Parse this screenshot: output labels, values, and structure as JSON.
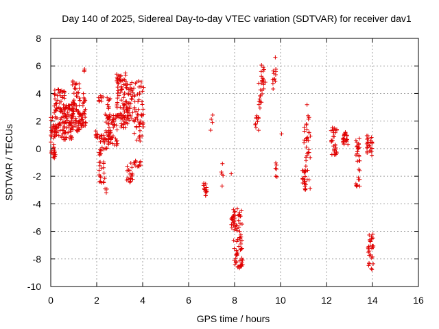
{
  "chart_data": {
    "type": "scatter",
    "title": "Day 140 of 2025, Sidereal Day-to-day VTEC variation (SDTVAR) for receiver dav1",
    "xlabel": "GPS time / hours",
    "ylabel": "SDTVAR / TECUs",
    "xlim": [
      0,
      16
    ],
    "ylim": [
      -10,
      8
    ],
    "xticks": [
      0,
      2,
      4,
      6,
      8,
      10,
      12,
      14,
      16
    ],
    "yticks": [
      -10,
      -8,
      -6,
      -4,
      -2,
      0,
      2,
      4,
      6,
      8
    ],
    "grid": true,
    "marker": "+",
    "marker_color": "#e00000",
    "series": [
      {
        "name": "SDTVAR",
        "clusters": [
          {
            "x0": 0.0,
            "x1": 0.2,
            "y0": -0.7,
            "y1": 2.3,
            "n": 40
          },
          {
            "x0": 0.15,
            "x1": 0.6,
            "y0": 0.8,
            "y1": 4.3,
            "n": 80
          },
          {
            "x0": 0.55,
            "x1": 1.0,
            "y0": 0.5,
            "y1": 3.2,
            "n": 70
          },
          {
            "x0": 0.9,
            "x1": 1.25,
            "y0": 1.2,
            "y1": 5.0,
            "n": 60
          },
          {
            "x0": 1.2,
            "x1": 1.55,
            "y0": 1.5,
            "y1": 4.2,
            "n": 40
          },
          {
            "x0": 1.45,
            "x1": 1.5,
            "y0": 5.5,
            "y1": 5.8,
            "n": 3
          },
          {
            "x0": 1.95,
            "x1": 2.05,
            "y0": 0.7,
            "y1": 1.3,
            "n": 8
          },
          {
            "x0": 2.05,
            "x1": 2.3,
            "y0": 3.4,
            "y1": 3.9,
            "n": 10
          },
          {
            "x0": 2.1,
            "x1": 2.35,
            "y0": -2.5,
            "y1": 1.0,
            "n": 40
          },
          {
            "x0": 2.3,
            "x1": 2.45,
            "y0": -3.2,
            "y1": -2.8,
            "n": 3
          },
          {
            "x0": 2.35,
            "x1": 2.6,
            "y0": 0.0,
            "y1": 3.8,
            "n": 35
          },
          {
            "x0": 2.5,
            "x1": 2.9,
            "y0": 0.2,
            "y1": 2.5,
            "n": 45
          },
          {
            "x0": 2.85,
            "x1": 3.3,
            "y0": 1.5,
            "y1": 5.5,
            "n": 70
          },
          {
            "x0": 3.2,
            "x1": 3.6,
            "y0": 1.8,
            "y1": 4.8,
            "n": 50
          },
          {
            "x0": 3.3,
            "x1": 3.6,
            "y0": -2.5,
            "y1": -1.0,
            "n": 20
          },
          {
            "x0": 3.5,
            "x1": 3.95,
            "y0": -1.3,
            "y1": -0.8,
            "n": 12
          },
          {
            "x0": 3.6,
            "x1": 4.05,
            "y0": 0.5,
            "y1": 5.0,
            "n": 55
          },
          {
            "x0": 6.65,
            "x1": 6.8,
            "y0": -3.5,
            "y1": -2.5,
            "n": 15
          },
          {
            "x0": 6.95,
            "x1": 7.05,
            "y0": 1.0,
            "y1": 2.5,
            "n": 4
          },
          {
            "x0": 7.4,
            "x1": 7.5,
            "y0": -2.9,
            "y1": -0.8,
            "n": 5
          },
          {
            "x0": 7.85,
            "x1": 7.9,
            "y0": -1.9,
            "y1": -1.8,
            "n": 1
          },
          {
            "x0": 7.85,
            "x1": 8.05,
            "y0": -5.8,
            "y1": -4.8,
            "n": 18
          },
          {
            "x0": 7.95,
            "x1": 8.35,
            "y0": -8.7,
            "y1": -4.2,
            "n": 70
          },
          {
            "x0": 8.9,
            "x1": 9.05,
            "y0": 1.3,
            "y1": 2.4,
            "n": 10
          },
          {
            "x0": 9.05,
            "x1": 9.2,
            "y0": 2.8,
            "y1": 4.8,
            "n": 12
          },
          {
            "x0": 9.15,
            "x1": 9.35,
            "y0": 4.3,
            "y1": 6.1,
            "n": 15
          },
          {
            "x0": 9.65,
            "x1": 9.8,
            "y0": 4.0,
            "y1": 5.9,
            "n": 12
          },
          {
            "x0": 9.75,
            "x1": 9.8,
            "y0": 6.5,
            "y1": 6.7,
            "n": 1
          },
          {
            "x0": 9.75,
            "x1": 9.85,
            "y0": -2.1,
            "y1": -1.0,
            "n": 6
          },
          {
            "x0": 10.0,
            "x1": 10.05,
            "y0": 0.9,
            "y1": 1.1,
            "n": 1
          },
          {
            "x0": 10.95,
            "x1": 11.1,
            "y0": -3.0,
            "y1": -1.5,
            "n": 25
          },
          {
            "x0": 11.0,
            "x1": 11.05,
            "y0": 0.0,
            "y1": 1.6,
            "n": 4
          },
          {
            "x0": 11.1,
            "x1": 11.3,
            "y0": -3.0,
            "y1": 3.3,
            "n": 30
          },
          {
            "x0": 12.2,
            "x1": 12.45,
            "y0": -0.5,
            "y1": 1.6,
            "n": 30
          },
          {
            "x0": 12.7,
            "x1": 12.95,
            "y0": 0.3,
            "y1": 1.2,
            "n": 25
          },
          {
            "x0": 13.25,
            "x1": 13.45,
            "y0": -2.8,
            "y1": 1.0,
            "n": 30
          },
          {
            "x0": 13.75,
            "x1": 14.0,
            "y0": -0.5,
            "y1": 1.1,
            "n": 25
          },
          {
            "x0": 13.8,
            "x1": 14.05,
            "y0": -8.8,
            "y1": -6.1,
            "n": 30
          }
        ]
      }
    ]
  }
}
